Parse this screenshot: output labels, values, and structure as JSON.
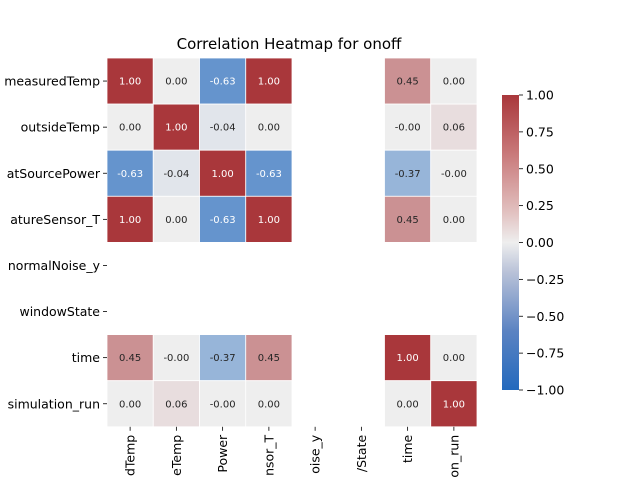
{
  "chart_data": {
    "type": "heatmap",
    "title": "Correlation Heatmap for onoff",
    "rows": [
      "measuredTemp",
      "outsideTemp",
      "heatSourcePower",
      "temperatureSensor_T",
      "normalNoise_y",
      "windowState",
      "time",
      "simulation_run"
    ],
    "columns": [
      "measuredTemp",
      "outsideTemp",
      "heatSourcePower",
      "temperatureSensor_T",
      "normalNoise_y",
      "windowState",
      "time",
      "simulation_run"
    ],
    "row_tick_labels": [
      "measuredTemp",
      "outsideTemp",
      "atSourcePower",
      "atureSensor_T",
      "normalNoise_y",
      "windowState",
      "time",
      "simulation_run"
    ],
    "column_tick_labels": [
      "dTemp",
      "eTemp",
      "Power",
      "nsor_T",
      "oise_y",
      "/State",
      "time",
      "on_run"
    ],
    "values": [
      [
        1.0,
        0.0,
        -0.63,
        1.0,
        null,
        null,
        0.45,
        0.0
      ],
      [
        0.0,
        1.0,
        -0.04,
        0.0,
        null,
        null,
        -0.0,
        0.06
      ],
      [
        -0.63,
        -0.04,
        1.0,
        -0.63,
        null,
        null,
        -0.37,
        -0.0
      ],
      [
        1.0,
        0.0,
        -0.63,
        1.0,
        null,
        null,
        0.45,
        0.0
      ],
      [
        null,
        null,
        null,
        null,
        null,
        null,
        null,
        null
      ],
      [
        null,
        null,
        null,
        null,
        null,
        null,
        null,
        null
      ],
      [
        0.45,
        -0.0,
        -0.37,
        0.45,
        null,
        null,
        1.0,
        0.0
      ],
      [
        0.0,
        0.06,
        -0.0,
        0.0,
        null,
        null,
        0.0,
        1.0
      ]
    ],
    "annotations": [
      [
        "1.00",
        "0.00",
        "-0.63",
        "1.00",
        "",
        "",
        "0.45",
        "0.00"
      ],
      [
        "0.00",
        "1.00",
        "-0.04",
        "0.00",
        "",
        "",
        "-0.00",
        "0.06"
      ],
      [
        "-0.63",
        "-0.04",
        "1.00",
        "-0.63",
        "",
        "",
        "-0.37",
        "-0.00"
      ],
      [
        "1.00",
        "0.00",
        "-0.63",
        "1.00",
        "",
        "",
        "0.45",
        "0.00"
      ],
      [
        "",
        "",
        "",
        "",
        "",
        "",
        "",
        ""
      ],
      [
        "",
        "",
        "",
        "",
        "",
        "",
        "",
        ""
      ],
      [
        "0.45",
        "-0.00",
        "-0.37",
        "0.45",
        "",
        "",
        "1.00",
        "0.00"
      ],
      [
        "0.00",
        "0.06",
        "-0.00",
        "0.00",
        "",
        "",
        "0.00",
        "1.00"
      ]
    ],
    "vmin": -1,
    "vmax": 1,
    "colormap": "vlag",
    "colors": {
      "negative": "#2369bd",
      "neutral": "#eeeeee",
      "positive": "#a9373b"
    },
    "colorbar_ticks": [
      1.0,
      0.75,
      0.5,
      0.25,
      0.0,
      -0.25,
      -0.5,
      -0.75,
      -1.0
    ],
    "colorbar_tick_labels": [
      "1.00",
      "0.75",
      "0.50",
      "0.25",
      "0.00",
      "−0.25",
      "−0.50",
      "−0.75",
      "−1.00"
    ],
    "legend": "colorbar-right",
    "grid": false
  }
}
